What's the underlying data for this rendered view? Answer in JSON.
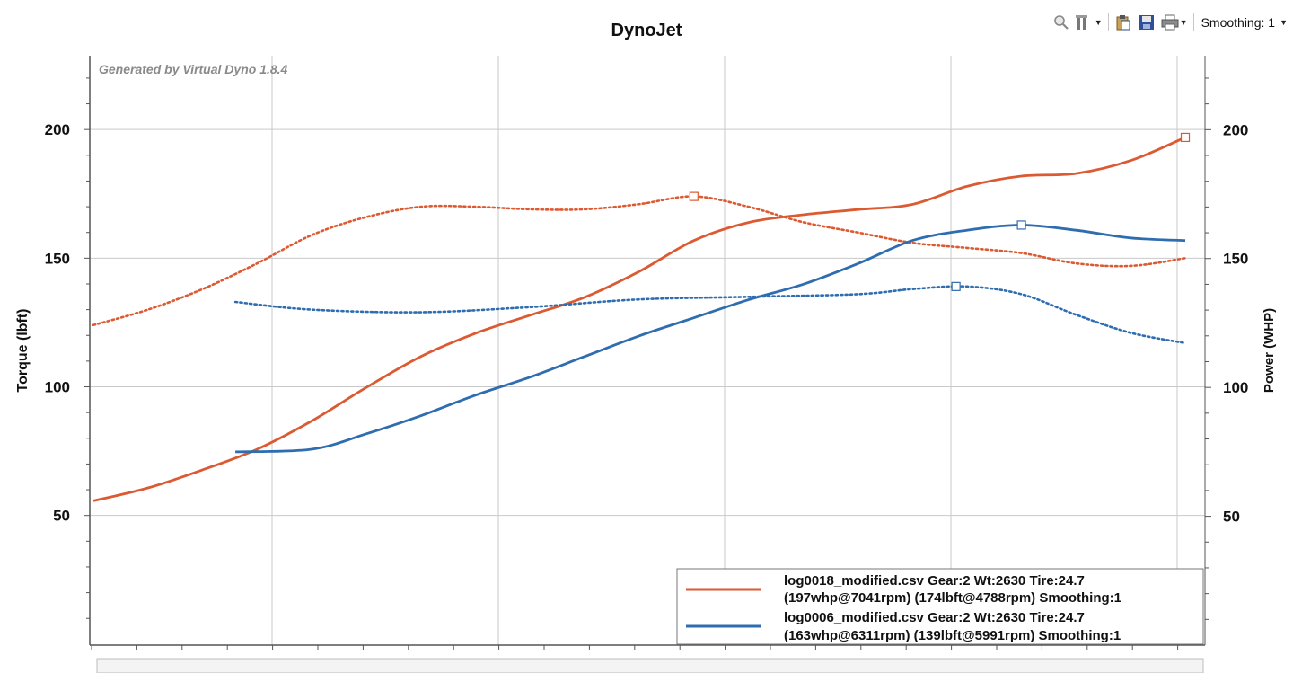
{
  "toolbar": {
    "smoothing_label": "Smoothing: 1",
    "icons": [
      "zoom-icon",
      "tools-icon",
      "clipboard-icon",
      "save-icon",
      "print-icon"
    ]
  },
  "chart_data": {
    "type": "line",
    "title": "DynoJet",
    "watermark": "Generated by Virtual Dyno 1.8.4",
    "ylabel": "Torque (lbft)",
    "y2label": "Power (WHP)",
    "xlabel": "",
    "ylim": [
      -0.4,
      228.7
    ],
    "y2lim": [
      0,
      228.7
    ],
    "y_ticks": [
      "50",
      "100",
      "150",
      "200"
    ],
    "y2_ticks": [
      "50",
      "100",
      "150",
      "200"
    ],
    "x_major_gridlines": 5,
    "grid": true,
    "legend_position": "bottom-right",
    "colors": {
      "orange": "#dc5a32",
      "blue": "#2e6db0"
    },
    "series": [
      {
        "name": "log0018_modified.csv Gear:2 Wt:2630 Tire:24.7 (197whp@7041rpm) (174lbft@4788rpm) Smoothing:1",
        "legend_line1": "log0018_modified.csv Gear:2 Wt:2630 Tire:24.7",
        "legend_line2": "(197whp@7041rpm) (174lbft@4788rpm) Smoothing:1",
        "color": "#dc5a32",
        "power": {
          "x": [
            0,
            0.05,
            0.1,
            0.15,
            0.2,
            0.25,
            0.3,
            0.35,
            0.4,
            0.45,
            0.5,
            0.55,
            0.6,
            0.65,
            0.7,
            0.75,
            0.8,
            0.85,
            0.9,
            0.95,
            1.0
          ],
          "y": [
            56,
            61,
            68,
            76,
            87,
            100,
            112,
            121,
            128,
            135,
            145,
            157,
            164,
            167,
            169,
            171,
            178,
            182,
            183,
            188,
            197
          ],
          "peak": {
            "x": 1.0,
            "y": 197
          }
        },
        "torque": {
          "x": [
            0,
            0.05,
            0.1,
            0.15,
            0.2,
            0.25,
            0.3,
            0.35,
            0.4,
            0.45,
            0.5,
            0.55,
            0.6,
            0.65,
            0.7,
            0.75,
            0.8,
            0.85,
            0.9,
            0.95,
            1.0
          ],
          "y": [
            124,
            130,
            138,
            148,
            159,
            166,
            170,
            170,
            169,
            169,
            171,
            174,
            170,
            164,
            160,
            156,
            154,
            152,
            148,
            147,
            150
          ],
          "peak": {
            "x": 0.55,
            "y": 174
          }
        }
      },
      {
        "name": "log0006_modified.csv Gear:2 Wt:2630 Tire:24.7 (163whp@6311rpm) (139lbft@5991rpm) Smoothing:1",
        "legend_line1": "log0006_modified.csv Gear:2 Wt:2630 Tire:24.7",
        "legend_line2": "(163whp@6311rpm) (139lbft@5991rpm) Smoothing:1",
        "color": "#2e6db0",
        "power": {
          "x": [
            0.13,
            0.2,
            0.25,
            0.3,
            0.35,
            0.4,
            0.45,
            0.5,
            0.55,
            0.6,
            0.65,
            0.7,
            0.75,
            0.8,
            0.85,
            0.9,
            0.95,
            1.0
          ],
          "y": [
            75,
            76,
            82,
            89,
            97,
            104,
            112,
            120,
            127,
            134,
            140,
            148,
            157,
            161,
            163,
            161,
            158,
            157
          ],
          "peak": {
            "x": 0.85,
            "y": 163
          }
        },
        "torque": {
          "x": [
            0.13,
            0.2,
            0.3,
            0.4,
            0.5,
            0.6,
            0.7,
            0.75,
            0.8,
            0.85,
            0.9,
            0.95,
            1.0
          ],
          "y": [
            133,
            130,
            129,
            131,
            134,
            135,
            136,
            138,
            139,
            136,
            128,
            121,
            117
          ],
          "peak": {
            "x": 0.79,
            "y": 139
          }
        }
      }
    ]
  }
}
